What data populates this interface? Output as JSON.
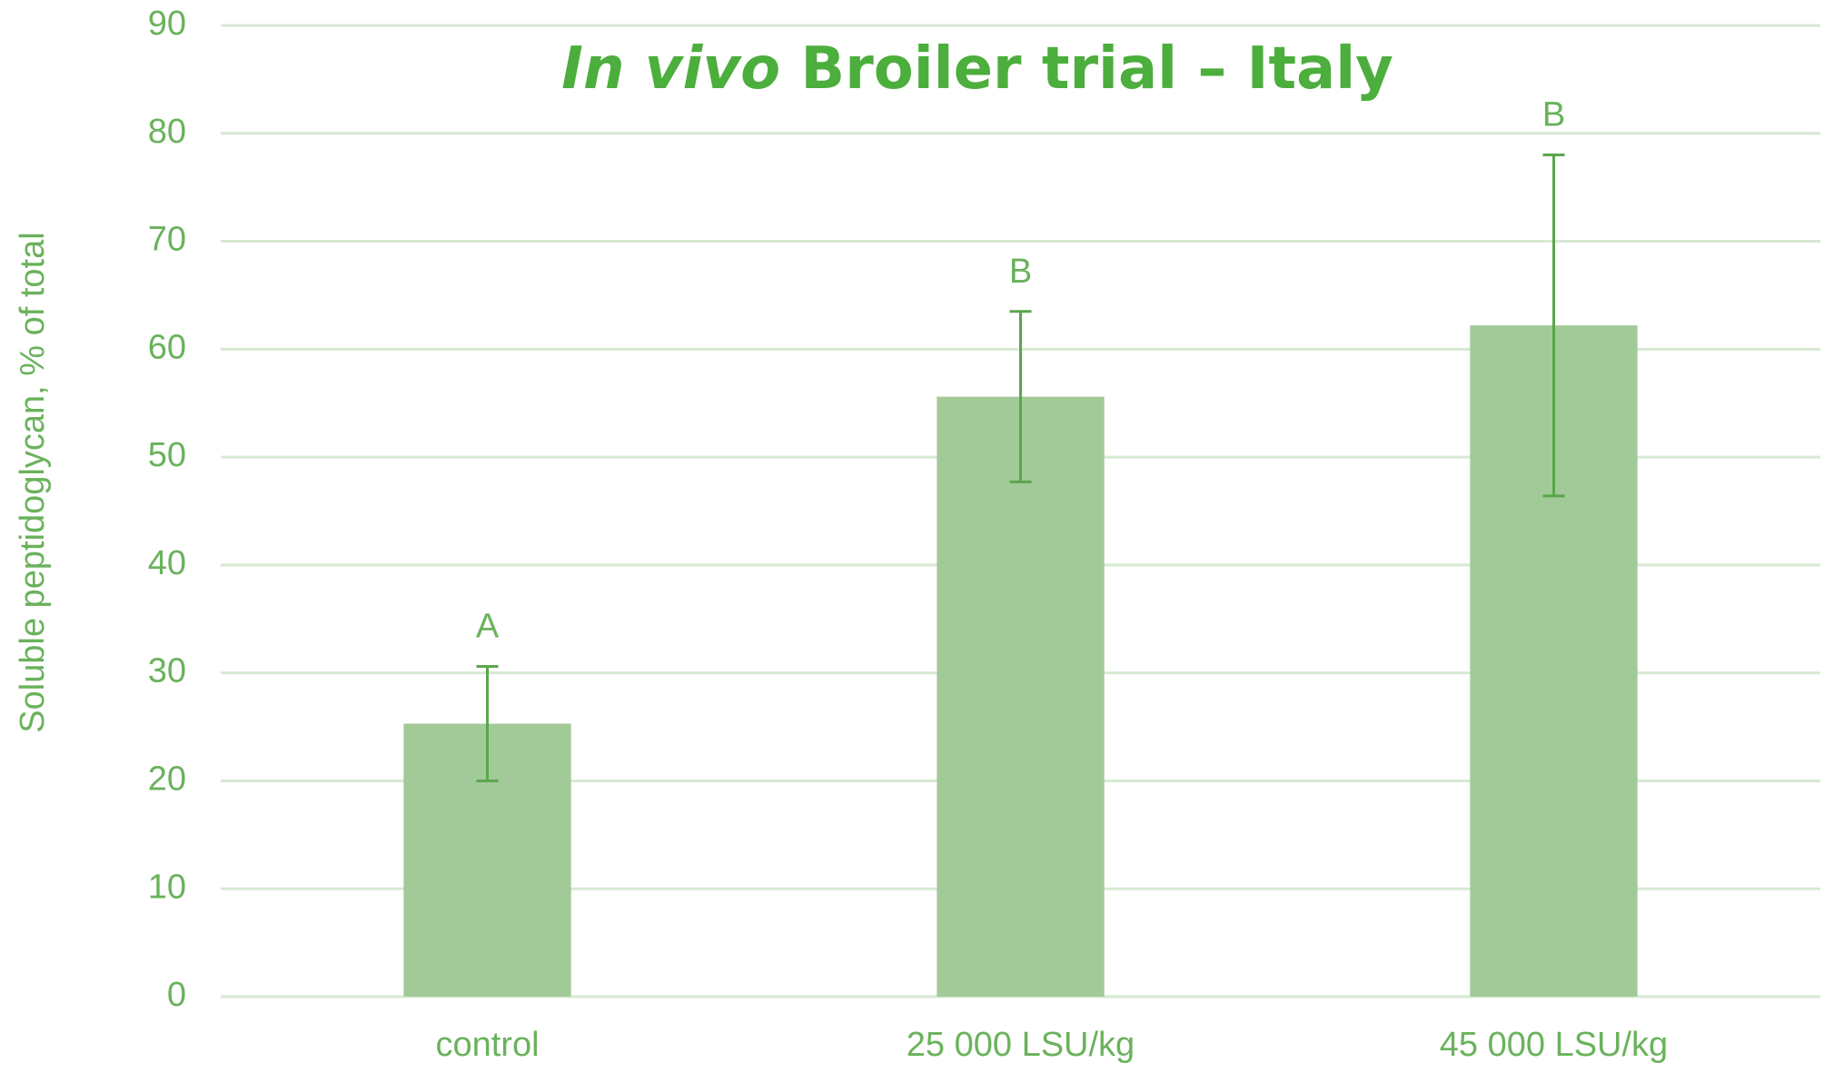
{
  "chart_data": {
    "type": "bar",
    "title": [
      "In vivo",
      "Broiler trial – Italy"
    ],
    "y_label": "Soluble peptidoglycan, % of total",
    "categories": [
      "control",
      "25 000 LSU/kg",
      "45 000 LSU/kg"
    ],
    "values": [
      25.3,
      55.6,
      62.2
    ],
    "errors": [
      5.3,
      7.9,
      15.8
    ],
    "annotations": [
      "A",
      "B",
      "B"
    ],
    "color": "#a2ca98",
    "error_color": "#5aa64c",
    "ylim": [
      0,
      90
    ],
    "yticks": [
      0,
      10,
      20,
      30,
      40,
      50,
      60,
      70,
      80,
      90
    ],
    "grid": true
  }
}
